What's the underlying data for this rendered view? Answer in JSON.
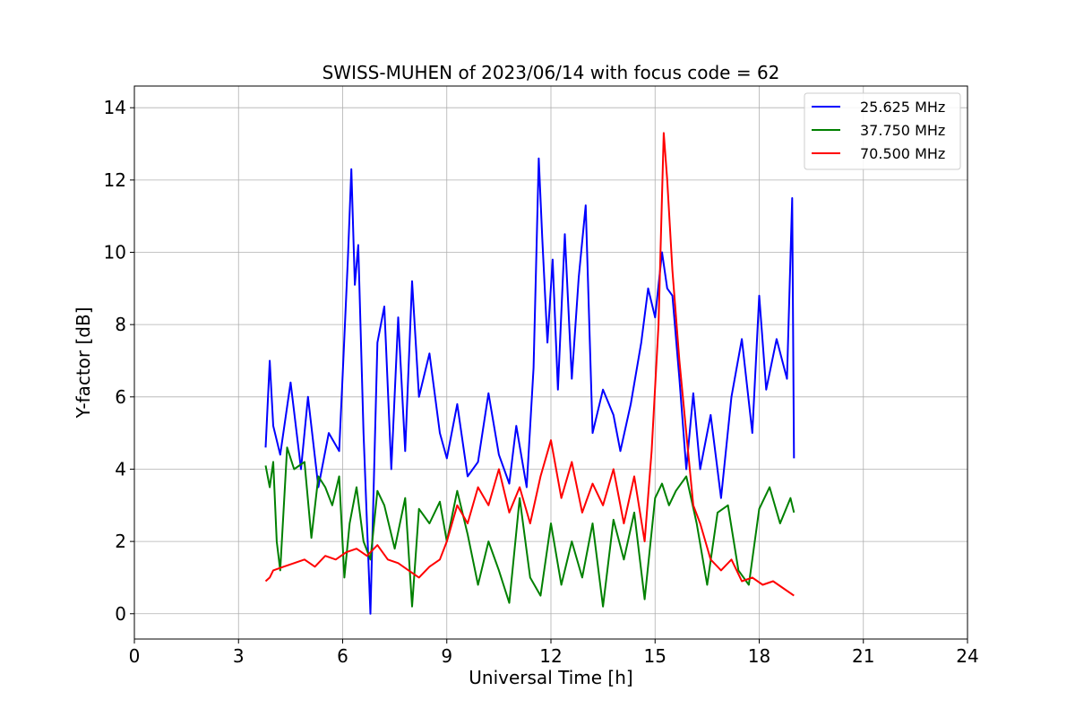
{
  "chart_data": {
    "type": "line",
    "title": "SWISS-MUHEN of 2023/06/14 with focus code = 62",
    "xlabel": "Universal Time [h]",
    "ylabel": "Y-factor [dB]",
    "xlim": [
      0,
      24
    ],
    "ylim": [
      -0.7,
      14.6
    ],
    "xticks": [
      0,
      3,
      6,
      9,
      12,
      15,
      18,
      21,
      24
    ],
    "yticks": [
      0,
      2,
      4,
      6,
      8,
      10,
      12,
      14
    ],
    "grid": true,
    "legend_position": "top-right",
    "series": [
      {
        "name": "25.625 MHz",
        "color": "#0000ff",
        "x": [
          3.78,
          3.9,
          4.0,
          4.2,
          4.5,
          4.8,
          5.0,
          5.3,
          5.6,
          5.9,
          6.0,
          6.15,
          6.25,
          6.35,
          6.45,
          6.6,
          6.8,
          7.0,
          7.2,
          7.4,
          7.6,
          7.8,
          8.0,
          8.2,
          8.5,
          8.8,
          9.0,
          9.3,
          9.6,
          9.9,
          10.2,
          10.5,
          10.8,
          11.0,
          11.3,
          11.5,
          11.65,
          11.75,
          11.9,
          12.05,
          12.2,
          12.4,
          12.6,
          12.8,
          13.0,
          13.2,
          13.5,
          13.8,
          14.0,
          14.3,
          14.6,
          14.8,
          15.0,
          15.2,
          15.35,
          15.5,
          15.7,
          15.9,
          16.1,
          16.3,
          16.6,
          16.9,
          17.2,
          17.5,
          17.8,
          18.0,
          18.2,
          18.5,
          18.8,
          18.95,
          19.0
        ],
        "y": [
          4.6,
          7.0,
          5.2,
          4.4,
          6.4,
          4.0,
          6.0,
          3.5,
          5.0,
          4.5,
          6.6,
          9.8,
          12.3,
          9.1,
          10.2,
          5.0,
          0.0,
          7.5,
          8.5,
          4.0,
          8.2,
          4.5,
          9.2,
          6.0,
          7.2,
          5.0,
          4.3,
          5.8,
          3.8,
          4.2,
          6.1,
          4.4,
          3.6,
          5.2,
          3.5,
          6.8,
          12.6,
          10.4,
          7.5,
          9.8,
          6.2,
          10.5,
          6.5,
          9.3,
          11.3,
          5.0,
          6.2,
          5.5,
          4.5,
          5.8,
          7.5,
          9.0,
          8.2,
          10.0,
          9.0,
          8.8,
          6.5,
          4.0,
          6.1,
          4.0,
          5.5,
          3.2,
          6.0,
          7.6,
          5.0,
          8.8,
          6.2,
          7.6,
          6.5,
          11.5,
          4.3
        ]
      },
      {
        "name": "37.750 MHz",
        "color": "#008000",
        "x": [
          3.78,
          3.9,
          4.0,
          4.1,
          4.2,
          4.4,
          4.6,
          4.9,
          5.1,
          5.3,
          5.5,
          5.7,
          5.9,
          6.05,
          6.2,
          6.4,
          6.6,
          6.8,
          7.0,
          7.2,
          7.5,
          7.8,
          8.0,
          8.2,
          8.5,
          8.8,
          9.0,
          9.3,
          9.6,
          9.9,
          10.2,
          10.5,
          10.8,
          11.1,
          11.4,
          11.7,
          12.0,
          12.3,
          12.6,
          12.9,
          13.2,
          13.5,
          13.8,
          14.1,
          14.4,
          14.7,
          15.0,
          15.2,
          15.4,
          15.6,
          15.9,
          16.2,
          16.5,
          16.8,
          17.1,
          17.4,
          17.7,
          18.0,
          18.3,
          18.6,
          18.9,
          19.0
        ],
        "y": [
          4.1,
          3.5,
          4.2,
          2.0,
          1.2,
          4.6,
          4.0,
          4.2,
          2.1,
          3.8,
          3.5,
          3.0,
          3.8,
          1.0,
          2.5,
          3.5,
          2.0,
          1.5,
          3.4,
          3.0,
          1.8,
          3.2,
          0.2,
          2.9,
          2.5,
          3.1,
          2.0,
          3.4,
          2.2,
          0.8,
          2.0,
          1.2,
          0.3,
          3.2,
          1.0,
          0.5,
          2.5,
          0.8,
          2.0,
          1.0,
          2.5,
          0.2,
          2.6,
          1.5,
          2.8,
          0.4,
          3.2,
          3.6,
          3.0,
          3.4,
          3.8,
          2.5,
          0.8,
          2.8,
          3.0,
          1.2,
          0.8,
          2.9,
          3.5,
          2.5,
          3.2,
          2.8
        ]
      },
      {
        "name": "70.500 MHz",
        "color": "#ff0000",
        "x": [
          3.78,
          3.9,
          4.0,
          4.3,
          4.6,
          4.9,
          5.2,
          5.5,
          5.8,
          6.1,
          6.4,
          6.7,
          7.0,
          7.3,
          7.6,
          7.9,
          8.2,
          8.5,
          8.8,
          9.0,
          9.3,
          9.6,
          9.9,
          10.2,
          10.5,
          10.8,
          11.1,
          11.4,
          11.7,
          12.0,
          12.3,
          12.6,
          12.9,
          13.2,
          13.5,
          13.8,
          14.1,
          14.4,
          14.7,
          14.9,
          15.1,
          15.25,
          15.35,
          15.5,
          15.7,
          15.9,
          16.1,
          16.3,
          16.6,
          16.9,
          17.2,
          17.5,
          17.8,
          18.1,
          18.4,
          18.7,
          19.0
        ],
        "y": [
          0.9,
          1.0,
          1.2,
          1.3,
          1.4,
          1.5,
          1.3,
          1.6,
          1.5,
          1.7,
          1.8,
          1.6,
          1.9,
          1.5,
          1.4,
          1.2,
          1.0,
          1.3,
          1.5,
          2.0,
          3.0,
          2.5,
          3.5,
          3.0,
          4.0,
          2.8,
          3.5,
          2.5,
          3.8,
          4.8,
          3.2,
          4.2,
          2.8,
          3.6,
          3.0,
          4.0,
          2.5,
          3.8,
          2.0,
          4.5,
          8.0,
          13.3,
          12.0,
          9.5,
          7.0,
          5.0,
          3.0,
          2.5,
          1.5,
          1.2,
          1.5,
          0.9,
          1.0,
          0.8,
          0.9,
          0.7,
          0.5
        ]
      }
    ]
  }
}
